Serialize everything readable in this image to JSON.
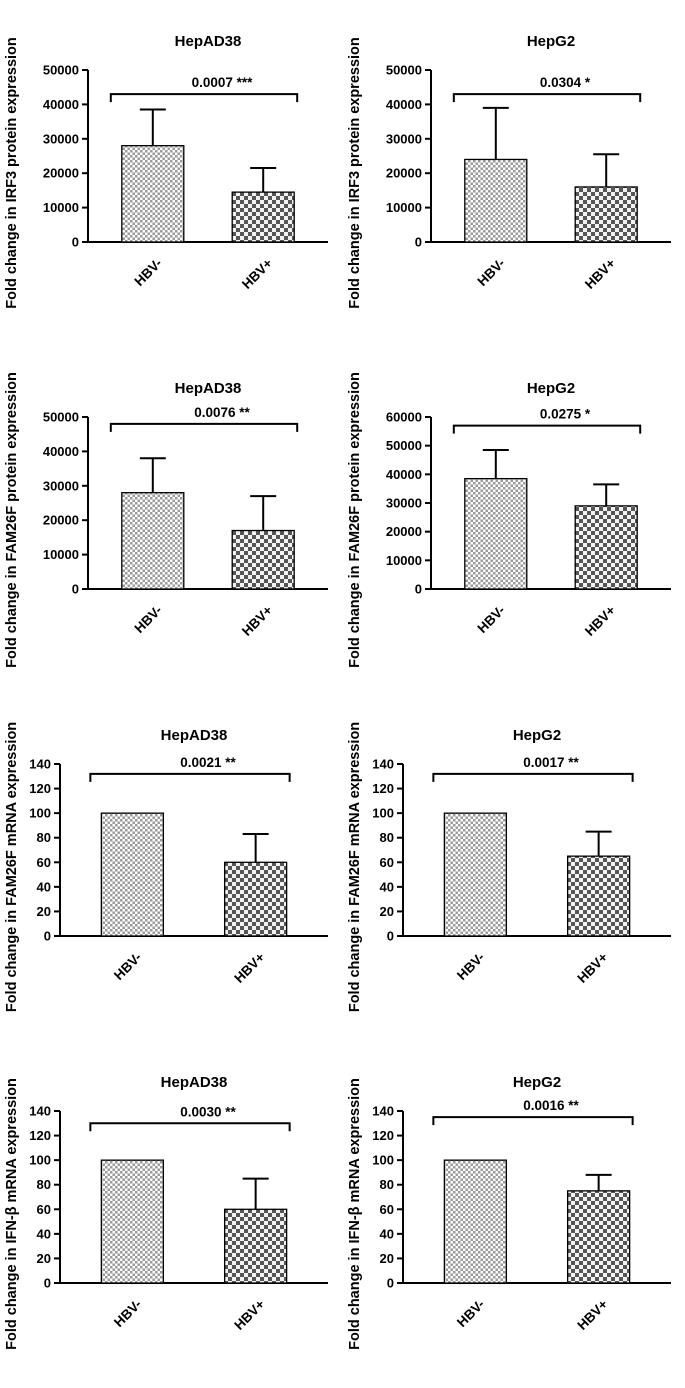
{
  "figure": {
    "columns": 2,
    "rows": 4,
    "background": "#ffffff",
    "axis_color": "#000000",
    "bar_textures": [
      "fine-gray-checker",
      "coarse-dark-checker"
    ]
  },
  "chart_data": [
    {
      "type": "bar",
      "title": "HepAD38",
      "ylabel": "Fold change in IRF3 protein expression",
      "categories": [
        "HBV-",
        "HBV+"
      ],
      "values": [
        28000,
        14500
      ],
      "errors_up": [
        10500,
        7000
      ],
      "ylim": [
        0,
        50000
      ],
      "ytick": 10000,
      "p_value": "0.0007",
      "stars": "***",
      "sig_line_y": 43000
    },
    {
      "type": "bar",
      "title": "HepG2",
      "ylabel": "Fold change in IRF3 protein expression",
      "categories": [
        "HBV-",
        "HBV+"
      ],
      "values": [
        24000,
        16000
      ],
      "errors_up": [
        15000,
        9500
      ],
      "ylim": [
        0,
        50000
      ],
      "ytick": 10000,
      "p_value": "0.0304",
      "stars": "*",
      "sig_line_y": 43000
    },
    {
      "type": "bar",
      "title": "HepAD38",
      "ylabel": "Fold change in FAM26F protein expression",
      "categories": [
        "HBV-",
        "HBV+"
      ],
      "values": [
        28000,
        17000
      ],
      "errors_up": [
        10000,
        10000
      ],
      "ylim": [
        0,
        50000
      ],
      "ytick": 10000,
      "p_value": "0.0076",
      "stars": "**",
      "sig_line_y": 48000
    },
    {
      "type": "bar",
      "title": "HepG2",
      "ylabel": "Fold change in FAM26F protein expression",
      "categories": [
        "HBV-",
        "HBV+"
      ],
      "values": [
        38500,
        29000
      ],
      "errors_up": [
        10000,
        7500
      ],
      "ylim": [
        0,
        60000
      ],
      "ytick": 10000,
      "p_value": "0.0275",
      "stars": "*",
      "sig_line_y": 57000
    },
    {
      "type": "bar",
      "title": "HepAD38",
      "ylabel": "Fold change in FAM26F mRNA expression",
      "categories": [
        "HBV-",
        "HBV+"
      ],
      "values": [
        100,
        60
      ],
      "errors_up": [
        0,
        23
      ],
      "ylim": [
        0,
        140
      ],
      "ytick": 20,
      "p_value": "0.0021",
      "stars": "**",
      "sig_line_y": 132
    },
    {
      "type": "bar",
      "title": "HepG2",
      "ylabel": "Fold change in FAM26F mRNA expression",
      "categories": [
        "HBV-",
        "HBV+"
      ],
      "values": [
        100,
        65
      ],
      "errors_up": [
        0,
        20
      ],
      "ylim": [
        0,
        140
      ],
      "ytick": 20,
      "p_value": "0.0017",
      "stars": "**",
      "sig_line_y": 132
    },
    {
      "type": "bar",
      "title": "HepAD38",
      "ylabel": "Fold change in IFN-β mRNA expression",
      "categories": [
        "HBV-",
        "HBV+"
      ],
      "values": [
        100,
        60
      ],
      "errors_up": [
        0,
        25
      ],
      "ylim": [
        0,
        140
      ],
      "ytick": 20,
      "p_value": "0.0030",
      "stars": "**",
      "sig_line_y": 130
    },
    {
      "type": "bar",
      "title": "HepG2",
      "ylabel": "Fold change in IFN-β mRNA expression",
      "categories": [
        "HBV-",
        "HBV+"
      ],
      "values": [
        100,
        75
      ],
      "errors_up": [
        0,
        13
      ],
      "ylim": [
        0,
        140
      ],
      "ytick": 20,
      "p_value": "0.0016",
      "stars": "**",
      "sig_line_y": 135
    }
  ]
}
